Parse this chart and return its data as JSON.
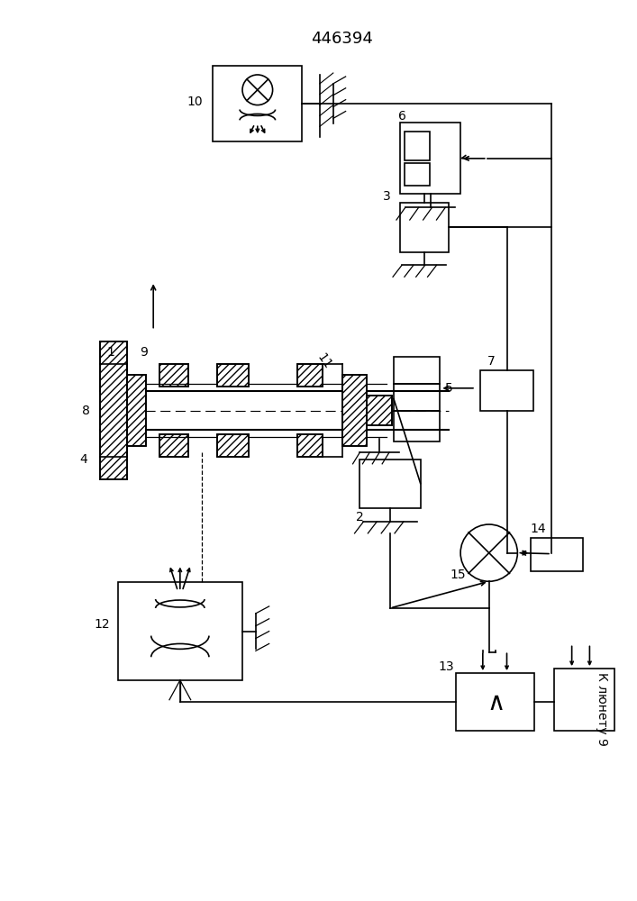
{
  "title": "446394",
  "bg_color": "#ffffff",
  "line_color": "#000000",
  "label_fontsize": 10,
  "title_fontsize": 13
}
